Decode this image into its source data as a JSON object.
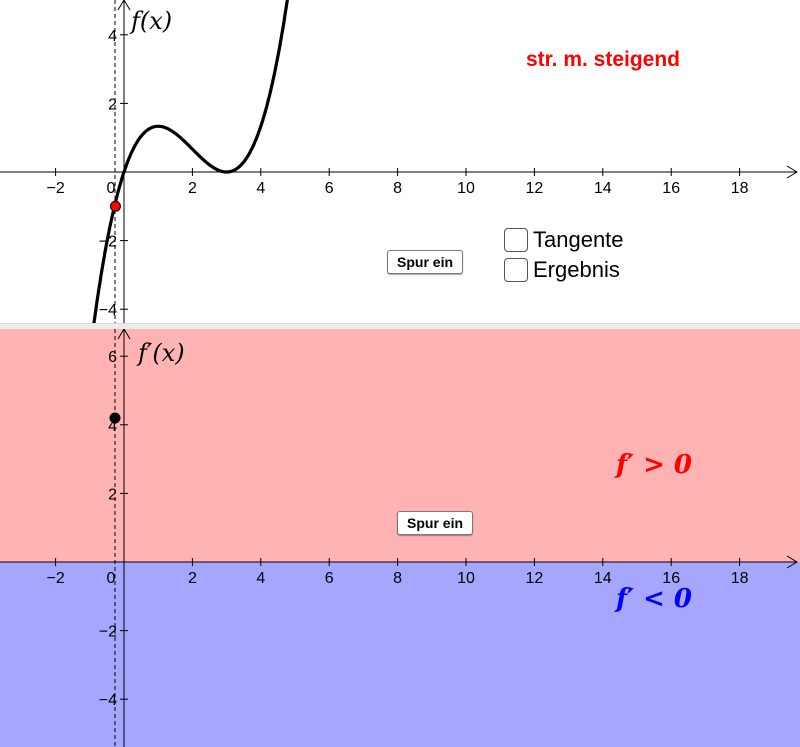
{
  "top_graph": {
    "y_axis_label": "f(x)",
    "status_text": "str. m. steigend",
    "status_color": "#ff0000",
    "x_tick_labels": [
      "−2",
      "0",
      "2",
      "4",
      "6",
      "8",
      "10",
      "12",
      "14",
      "16",
      "18"
    ],
    "y_tick_labels": [
      "4",
      "2",
      "−2",
      "−4"
    ],
    "trace_button_label": "Spur ein",
    "checkboxes": [
      {
        "label": "Tangente",
        "checked": false
      },
      {
        "label": "Ergebnis",
        "checked": false
      }
    ],
    "point_color": "#ff0000",
    "curve_color": "#000000"
  },
  "bottom_graph": {
    "y_axis_label": "f′(x)",
    "x_tick_labels": [
      "−2",
      "0",
      "2",
      "4",
      "6",
      "8",
      "10",
      "12",
      "14",
      "16",
      "18"
    ],
    "y_tick_labels": [
      "6",
      "4",
      "2",
      "−2",
      "−4"
    ],
    "trace_button_label": "Spur ein",
    "positive_label": "f′ > 0",
    "negative_label": "f′ < 0",
    "positive_color": "#ff0000",
    "negative_color": "#0000ff",
    "positive_fill": "#ffb3b3",
    "negative_fill": "#a6a6ff",
    "point_color": "#000000"
  },
  "shared": {
    "slider_x": -0.25,
    "f_at_x": -1
  }
}
